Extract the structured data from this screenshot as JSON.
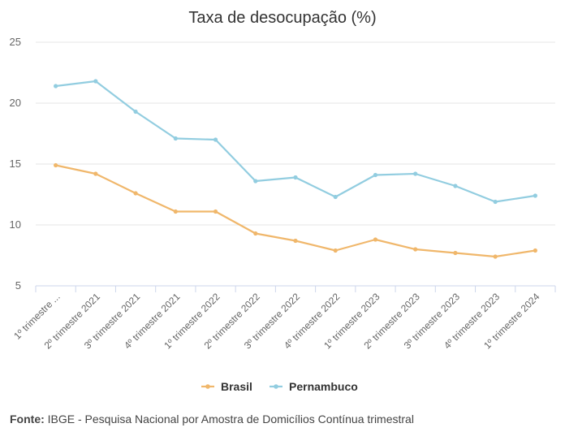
{
  "chart_data": {
    "type": "line",
    "title": "Taxa de desocupação (%)",
    "categories": [
      "1º trimestre ...",
      "2º trimestre 2021",
      "3º trimestre 2021",
      "4º trimestre 2021",
      "1º trimestre 2022",
      "2º trimestre 2022",
      "3º trimestre 2022",
      "4º trimestre 2022",
      "1º trimestre 2023",
      "2º trimestre 2023",
      "3º trimestre 2023",
      "4º trimestre 2023",
      "1º trimestre 2024"
    ],
    "series": [
      {
        "name": "Brasil",
        "color": "#f0b76b",
        "values": [
          14.9,
          14.2,
          12.6,
          11.1,
          11.1,
          9.3,
          8.7,
          7.9,
          8.8,
          8.0,
          7.7,
          7.4,
          7.9
        ]
      },
      {
        "name": "Pernambuco",
        "color": "#92cde0",
        "values": [
          21.4,
          21.8,
          19.3,
          17.1,
          17.0,
          13.6,
          13.9,
          12.3,
          14.1,
          14.2,
          13.2,
          11.9,
          12.4
        ]
      }
    ],
    "yticks": [
      5,
      10,
      15,
      20,
      25
    ],
    "ylim": [
      5,
      25
    ],
    "grid": true,
    "legend_position": "bottom"
  },
  "source": {
    "label": "Fonte:",
    "text": " IBGE - Pesquisa Nacional por Amostra de Domicílios Contínua trimestral"
  }
}
